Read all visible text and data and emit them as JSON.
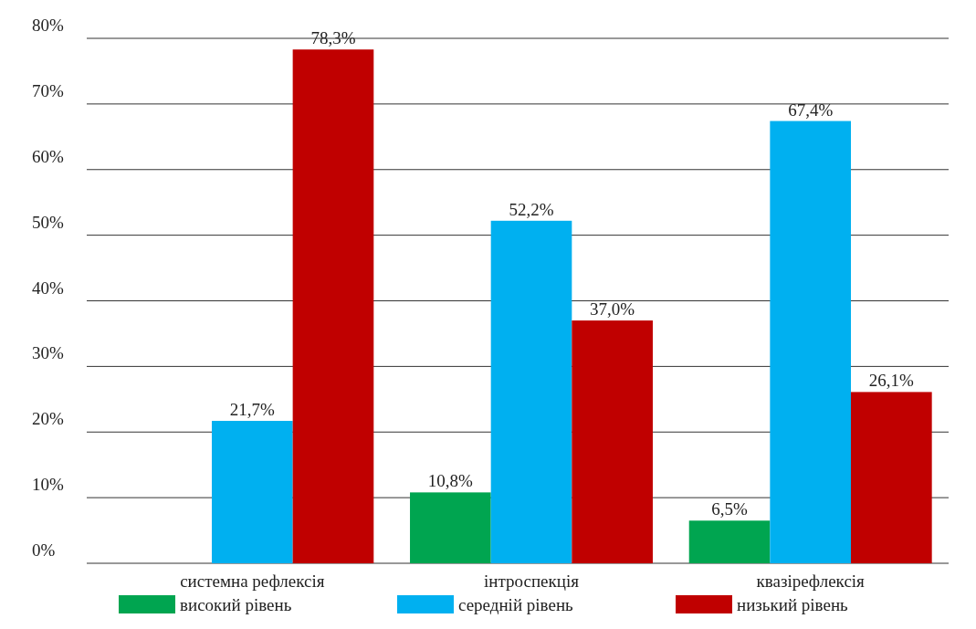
{
  "chart_data": {
    "type": "bar",
    "categories": [
      "системна рефлексія",
      "інтроспекція",
      "квазірефлексія"
    ],
    "series": [
      {
        "name": "високий рівень",
        "color": "#00a550",
        "values": [
          0,
          10.8,
          6.5
        ],
        "value_labels": [
          null,
          "10,8%",
          "6,5%"
        ]
      },
      {
        "name": "середній рівень",
        "color": "#00b0f0",
        "values": [
          21.7,
          52.2,
          67.4
        ],
        "value_labels": [
          "21,7%",
          "52,2%",
          "67,4%"
        ]
      },
      {
        "name": "низький рівень",
        "color": "#c00000",
        "values": [
          78.3,
          37.0,
          26.1
        ],
        "value_labels": [
          "78,3%",
          "37,0%",
          "26,1%"
        ]
      }
    ],
    "ylim": [
      0,
      80
    ],
    "yticks": [
      {
        "value": 0,
        "label": "0%"
      },
      {
        "value": 10,
        "label": "10%"
      },
      {
        "value": 20,
        "label": "20%"
      },
      {
        "value": 30,
        "label": "30%"
      },
      {
        "value": 40,
        "label": "40%"
      },
      {
        "value": 50,
        "label": "50%"
      },
      {
        "value": 60,
        "label": "60%"
      },
      {
        "value": 70,
        "label": "70%"
      },
      {
        "value": 80,
        "label": "80%"
      }
    ],
    "grid": "y",
    "legend": "bottom"
  }
}
